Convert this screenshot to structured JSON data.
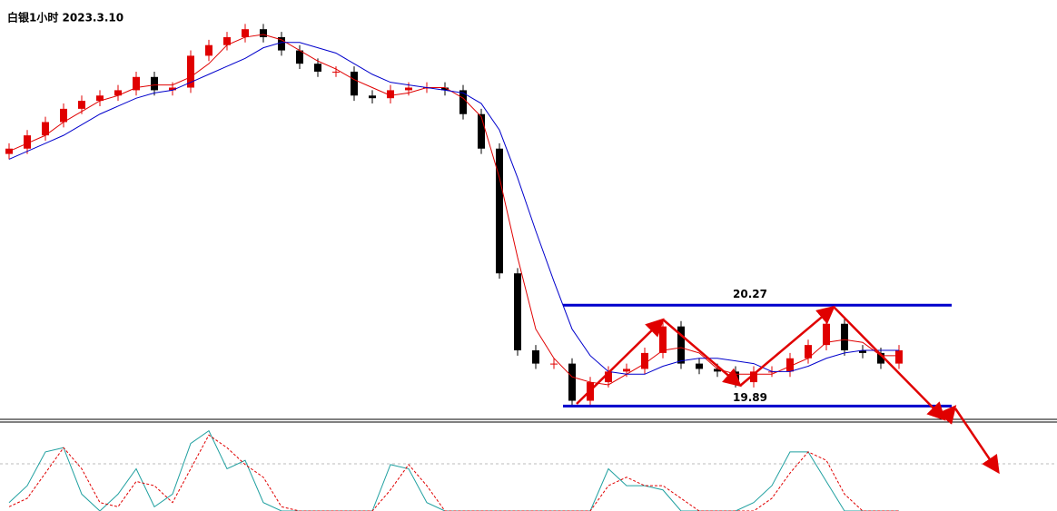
{
  "chart_data": [
    {
      "type": "candlestick",
      "title": "白银1小时 2023.3.10",
      "ylim": [
        19.84,
        21.42
      ],
      "open": [
        20.84,
        20.86,
        20.91,
        20.96,
        21.01,
        21.04,
        21.06,
        21.08,
        21.13,
        21.08,
        21.09,
        21.21,
        21.25,
        21.28,
        21.31,
        21.28,
        21.23,
        21.18,
        21.15,
        21.15,
        21.06,
        21.05,
        21.08,
        21.09,
        21.09,
        21.08,
        20.99,
        20.86,
        20.39,
        20.1,
        20.05,
        20.05,
        19.91,
        19.98,
        20.02,
        20.03,
        20.09,
        20.19,
        20.05,
        20.03,
        20.02,
        19.98,
        20.02,
        20.02,
        20.07,
        20.12,
        20.2,
        20.1,
        20.09,
        20.05
      ],
      "high": [
        20.88,
        20.93,
        20.98,
        21.03,
        21.06,
        21.08,
        21.1,
        21.15,
        21.15,
        21.11,
        21.23,
        21.27,
        21.3,
        21.33,
        21.33,
        21.3,
        21.25,
        21.2,
        21.17,
        21.17,
        21.08,
        21.1,
        21.11,
        21.11,
        21.11,
        21.1,
        21.01,
        20.88,
        20.41,
        20.12,
        20.07,
        20.07,
        20.0,
        20.04,
        20.05,
        20.11,
        20.21,
        20.21,
        20.07,
        20.05,
        20.04,
        20.04,
        20.04,
        20.09,
        20.14,
        20.22,
        20.22,
        20.12,
        20.11,
        20.12
      ],
      "low": [
        20.82,
        20.84,
        20.89,
        20.94,
        20.99,
        21.02,
        21.04,
        21.06,
        21.06,
        21.06,
        21.07,
        21.19,
        21.23,
        21.26,
        21.26,
        21.21,
        21.16,
        21.13,
        21.13,
        21.04,
        21.03,
        21.03,
        21.06,
        21.07,
        21.06,
        20.97,
        20.84,
        20.37,
        20.08,
        20.03,
        20.03,
        19.89,
        19.89,
        19.96,
        20.0,
        20.01,
        20.07,
        20.03,
        20.01,
        20.0,
        19.96,
        19.96,
        20.0,
        20.0,
        20.05,
        20.1,
        20.08,
        20.07,
        20.03,
        20.03
      ],
      "close": [
        20.86,
        20.91,
        20.96,
        21.01,
        21.04,
        21.06,
        21.08,
        21.13,
        21.08,
        21.09,
        21.21,
        21.25,
        21.28,
        21.31,
        21.28,
        21.23,
        21.18,
        21.15,
        21.15,
        21.06,
        21.05,
        21.08,
        21.09,
        21.09,
        21.08,
        20.99,
        20.86,
        20.39,
        20.1,
        20.05,
        20.05,
        19.91,
        19.98,
        20.02,
        20.03,
        20.09,
        20.19,
        20.05,
        20.03,
        20.02,
        19.98,
        20.02,
        20.02,
        20.07,
        20.12,
        20.2,
        20.1,
        20.09,
        20.05,
        20.1
      ],
      "up_color": "#e00000",
      "down_color": "#000000",
      "series": [
        {
          "color": "#e00000",
          "values": [
            20.85,
            20.88,
            20.91,
            20.96,
            21.0,
            21.04,
            21.06,
            21.09,
            21.1,
            21.1,
            21.13,
            21.18,
            21.25,
            21.28,
            21.29,
            21.27,
            21.23,
            21.19,
            21.16,
            21.12,
            21.09,
            21.06,
            21.07,
            21.09,
            21.09,
            21.05,
            20.98,
            20.75,
            20.45,
            20.18,
            20.07,
            20.0,
            19.98,
            19.97,
            20.01,
            20.05,
            20.1,
            20.11,
            20.09,
            20.03,
            20.01,
            20.01,
            20.01,
            20.04,
            20.07,
            20.13,
            20.14,
            20.13,
            20.08,
            20.08
          ]
        },
        {
          "color": "#0000cc",
          "values": [
            20.82,
            20.85,
            20.88,
            20.91,
            20.95,
            20.99,
            21.02,
            21.05,
            21.07,
            21.08,
            21.11,
            21.14,
            21.17,
            21.2,
            21.24,
            21.26,
            21.26,
            21.24,
            21.22,
            21.18,
            21.14,
            21.11,
            21.1,
            21.09,
            21.08,
            21.07,
            21.03,
            20.93,
            20.75,
            20.55,
            20.36,
            20.18,
            20.08,
            20.02,
            20.01,
            20.01,
            20.04,
            20.06,
            20.07,
            20.07,
            20.06,
            20.05,
            20.02,
            20.02,
            20.04,
            20.07,
            20.09,
            20.1,
            20.1,
            20.1
          ]
        }
      ],
      "levels": [
        {
          "value": 20.27,
          "label": "20.27"
        },
        {
          "value": 19.89,
          "label": "19.89"
        }
      ],
      "level_color": "#0000cc"
    },
    {
      "type": "line",
      "ylim": [
        0,
        100
      ],
      "series": [
        {
          "color": "#20a0a0",
          "dashed": false,
          "values": [
            10,
            30,
            70,
            75,
            20,
            0,
            20,
            50,
            5,
            20,
            80,
            95,
            50,
            60,
            10,
            0,
            0,
            0,
            0,
            0,
            0,
            55,
            50,
            10,
            0,
            0,
            0,
            0,
            0,
            0,
            0,
            0,
            0,
            50,
            30,
            30,
            25,
            0,
            0,
            0,
            0,
            10,
            30,
            70,
            70,
            35,
            0,
            0,
            0,
            0
          ]
        },
        {
          "color": "#e00000",
          "dashed": true,
          "values": [
            5,
            15,
            45,
            75,
            50,
            10,
            5,
            35,
            30,
            10,
            50,
            90,
            75,
            55,
            40,
            5,
            0,
            0,
            0,
            0,
            0,
            25,
            55,
            30,
            0,
            0,
            0,
            0,
            0,
            0,
            0,
            0,
            0,
            30,
            40,
            30,
            30,
            15,
            0,
            0,
            0,
            0,
            15,
            45,
            70,
            60,
            20,
            0,
            0,
            0
          ]
        }
      ]
    }
  ]
}
